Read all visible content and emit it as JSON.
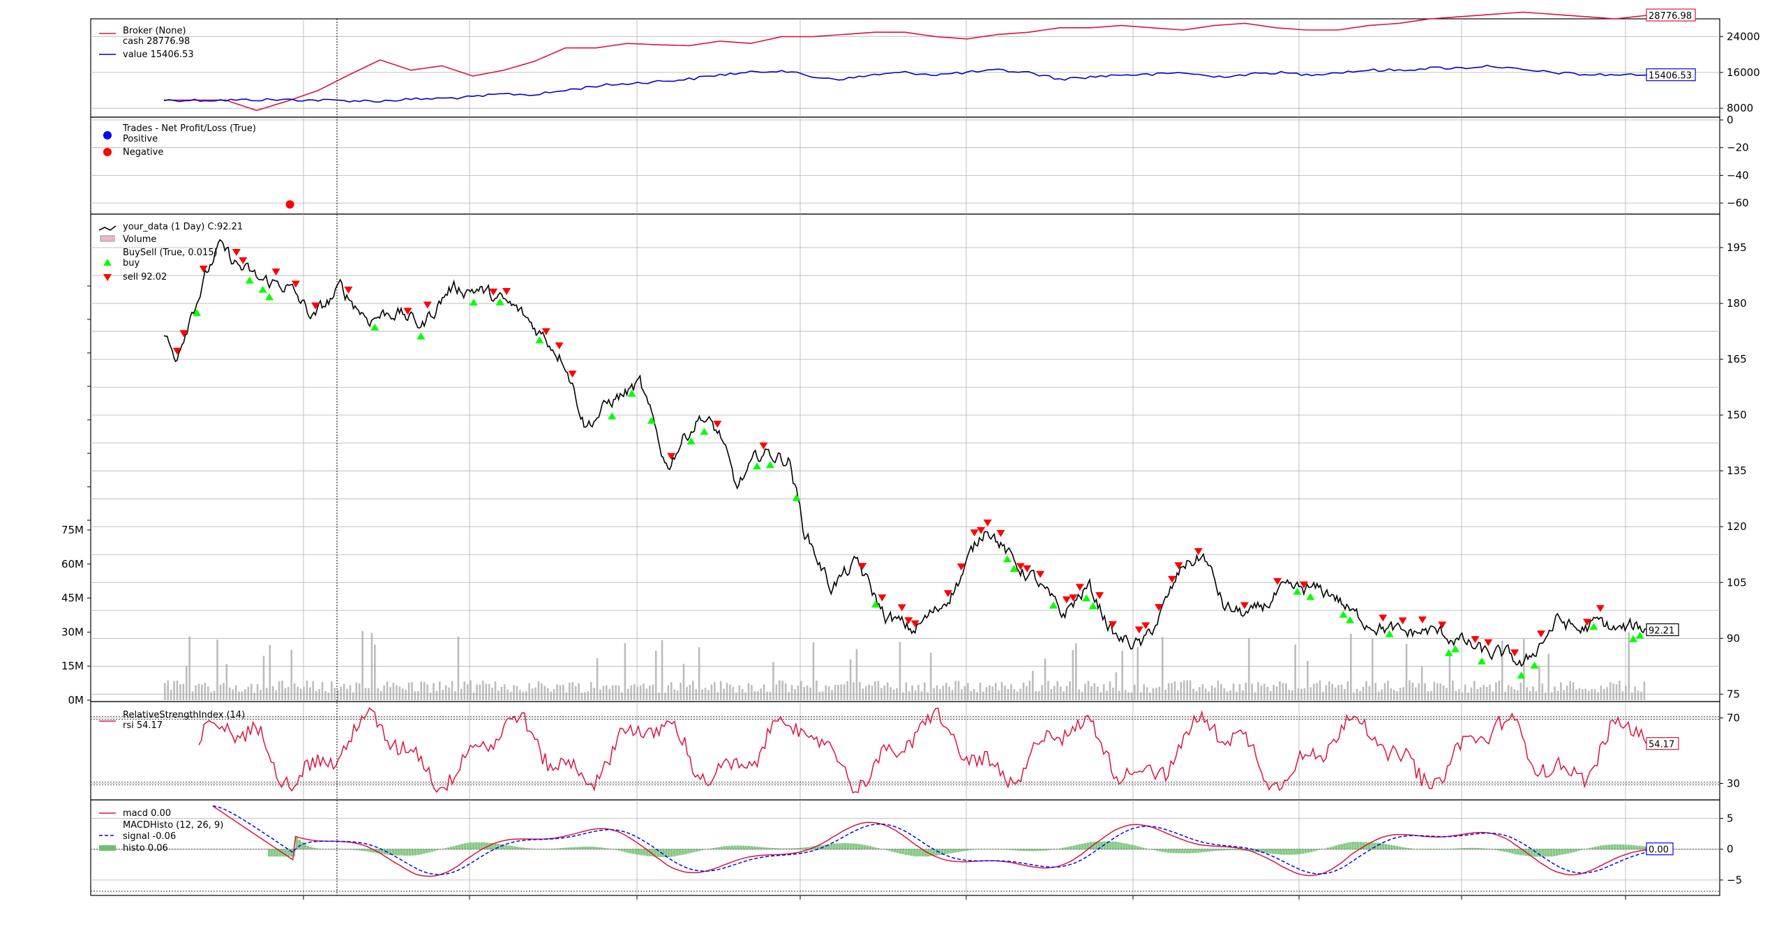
{
  "chart_data": {
    "type": "line",
    "panels": [
      {
        "name": "broker",
        "legend": [
          "Broker (None)",
          "cash 28776.98",
          "value 15406.53"
        ],
        "yticks": [
          8000,
          16000,
          24000
        ],
        "ylim": [
          6000,
          28000
        ],
        "series": [
          {
            "name": "cash",
            "color": "#dc143c",
            "values": [
              9800,
              9800,
              9800,
              7500,
              9600,
              12000,
              15500,
              18800,
              16500,
              17500,
              15200,
              16500,
              18500,
              21500,
              21500,
              22500,
              22200,
              22000,
              23000,
              22500,
              24000,
              24000,
              24500,
              25000,
              25000,
              24000,
              23500,
              24500,
              25000,
              26000,
              26000,
              26500,
              26000,
              25500,
              26500,
              27000,
              26000,
              25500,
              25500,
              26500,
              27000,
              28000,
              28500,
              29000,
              29500,
              29000,
              28500,
              28000,
              28776.98
            ],
            "last_label": "28776.98"
          },
          {
            "name": "value",
            "color": "#0000cc",
            "values": [
              9800,
              9800,
              9800,
              9900,
              9900,
              9800,
              9700,
              9600,
              10000,
              10200,
              10500,
              11200,
              11000,
              12000,
              13000,
              13500,
              14000,
              14500,
              15500,
              16000,
              16500,
              15000,
              14500,
              15500,
              16000,
              15500,
              16000,
              16500,
              16000,
              14500,
              15000,
              15500,
              15500,
              16000,
              15000,
              15500,
              16000,
              15500,
              16000,
              16500,
              16500,
              17000,
              17000,
              17500,
              16500,
              16000,
              15500,
              15500,
              15406.53
            ],
            "last_label": "15406.53"
          }
        ]
      },
      {
        "name": "trades",
        "legend": [
          "Trades - Net Profit/Loss (True)",
          "Positive",
          "Negative"
        ],
        "yticks": [
          0,
          -20,
          -40,
          -60
        ],
        "ylim": [
          -68,
          2
        ],
        "points": [
          {
            "x": 0.085,
            "y": -61,
            "kind": "negative"
          }
        ]
      },
      {
        "name": "price",
        "legend": [
          "your_data (1 Day) C:92.21",
          "Volume",
          "BuySell (True, 0.015)",
          "buy",
          "sell 92.02"
        ],
        "yticks": [
          75,
          90,
          105,
          120,
          135,
          150,
          165,
          180,
          195
        ],
        "ylim": [
          73,
          204
        ],
        "left_ticks": [
          "0M",
          "15M",
          "30M",
          "45M",
          "60M",
          "75M"
        ],
        "vol_ylim_millions": [
          0,
          150
        ],
        "last_label": "92.21",
        "anchors": [
          [
            0,
            172
          ],
          [
            0.008,
            165
          ],
          [
            0.02,
            178
          ],
          [
            0.04,
            195
          ],
          [
            0.055,
            190
          ],
          [
            0.07,
            186
          ],
          [
            0.09,
            185
          ],
          [
            0.11,
            176
          ],
          [
            0.13,
            184
          ],
          [
            0.15,
            176
          ],
          [
            0.17,
            178
          ],
          [
            0.19,
            174
          ],
          [
            0.21,
            184
          ],
          [
            0.23,
            184
          ],
          [
            0.26,
            178
          ],
          [
            0.28,
            171
          ],
          [
            0.295,
            165
          ],
          [
            0.31,
            147
          ],
          [
            0.33,
            154
          ],
          [
            0.35,
            158
          ],
          [
            0.37,
            136
          ],
          [
            0.38,
            143
          ],
          [
            0.395,
            150
          ],
          [
            0.41,
            144
          ],
          [
            0.42,
            130
          ],
          [
            0.44,
            140
          ],
          [
            0.46,
            138
          ],
          [
            0.47,
            120
          ],
          [
            0.49,
            104
          ],
          [
            0.51,
            110
          ],
          [
            0.53,
            96
          ],
          [
            0.55,
            92
          ],
          [
            0.57,
            98
          ],
          [
            0.585,
            106
          ],
          [
            0.605,
            121
          ],
          [
            0.625,
            110
          ],
          [
            0.64,
            106
          ],
          [
            0.66,
            96
          ],
          [
            0.68,
            104
          ],
          [
            0.7,
            90
          ],
          [
            0.72,
            88
          ],
          [
            0.735,
            98
          ],
          [
            0.75,
            110
          ],
          [
            0.765,
            112
          ],
          [
            0.78,
            98
          ],
          [
            0.8,
            96
          ],
          [
            0.82,
            102
          ],
          [
            0.84,
            103
          ],
          [
            0.86,
            102
          ],
          [
            0.875,
            96
          ],
          [
            0.89,
            94
          ],
          [
            0.91,
            91
          ],
          [
            0.93,
            92
          ],
          [
            0.95,
            90
          ],
          [
            0.97,
            86
          ],
          [
            0.99,
            85
          ],
          [
            1.0,
            82
          ],
          [
            1.01,
            88
          ],
          [
            1.025,
            95
          ],
          [
            1.04,
            92
          ],
          [
            1.055,
            94
          ],
          [
            1.07,
            92
          ],
          [
            1.085,
            93
          ],
          [
            1.09,
            92.21
          ]
        ]
      },
      {
        "name": "rsi",
        "legend": [
          "RelativeStrengthIndex (14)",
          "rsi 54.17"
        ],
        "yticks": [
          30,
          70
        ],
        "ylim": [
          20,
          80
        ],
        "refs": [
          30,
          70
        ],
        "last_label": "54.17"
      },
      {
        "name": "macd",
        "legend": [
          "macd 0.00",
          "MACDHisto (12, 26, 9)",
          "signal -0.06",
          "histo 0.06"
        ],
        "yticks": [
          -5,
          0,
          5
        ],
        "ylim": [
          -7.5,
          8
        ],
        "last_label": "0.00"
      }
    ],
    "colors": {
      "price": "#000000",
      "buy": "#00ff00",
      "sell": "#ff0000",
      "rsi": "#dc143c",
      "macd": "#dc143c",
      "signal": "#0000ff",
      "histo": "#6fbf6f",
      "volume": "#b0b0b0",
      "positive": "#0000ff",
      "negative": "#ff0000",
      "grid": "#b0b0b0"
    }
  }
}
